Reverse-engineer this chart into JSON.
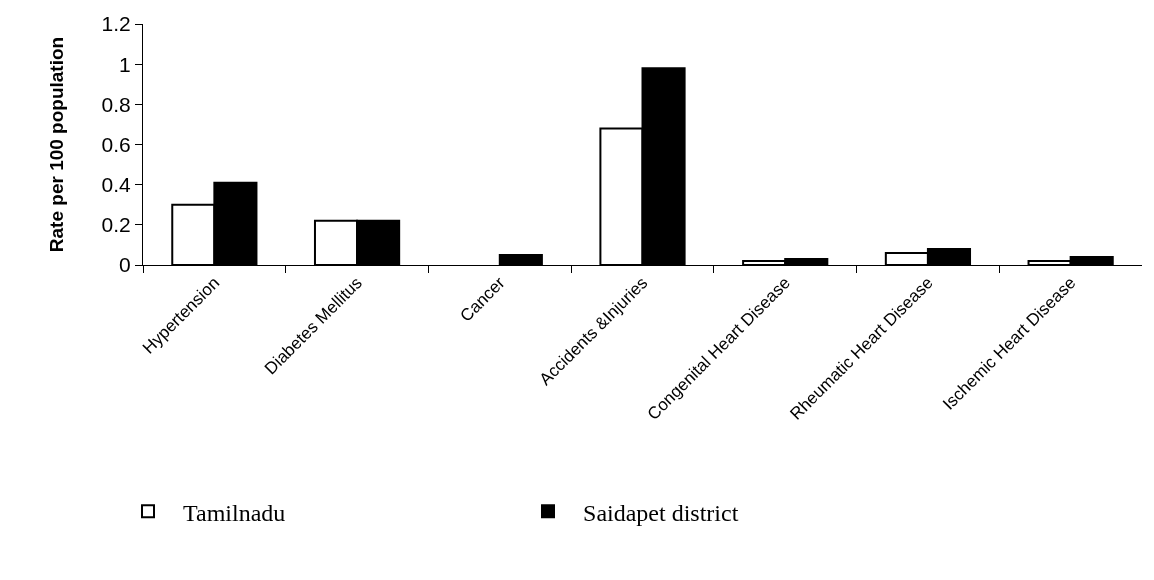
{
  "chart_data": {
    "type": "bar",
    "ylabel": "Rate per 100 population",
    "categories": [
      "Hypertension",
      "Diabetes Mellitus",
      "Cancer",
      "Accidents &Injuries",
      "Congenital Heart Disease",
      "Rheumatic Heart Disease",
      "Ischemic Heart Disease"
    ],
    "series": [
      {
        "name": "Tamilnadu",
        "color": "#ffffff",
        "values": [
          0.3,
          0.22,
          null,
          0.68,
          0.02,
          0.06,
          0.02
        ]
      },
      {
        "name": "Saidapet district",
        "color": "#000000",
        "values": [
          0.41,
          0.22,
          0.05,
          0.98,
          0.03,
          0.08,
          0.04
        ]
      }
    ],
    "ylim": [
      0,
      1.2
    ],
    "yticks": [
      0,
      0.2,
      0.4,
      0.6,
      0.8,
      1,
      1.2
    ],
    "legend": "bottom"
  }
}
